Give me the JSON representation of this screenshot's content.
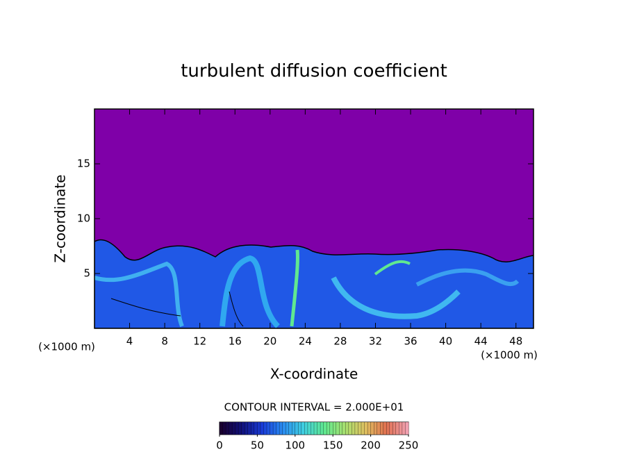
{
  "chart_data": {
    "type": "contour",
    "title": "turbulent diffusion coefficient",
    "xlabel": "X-coordinate",
    "ylabel": "Z-coordinate",
    "x_unit_left": "(×1000 m)",
    "x_unit_right": "(×1000 m)",
    "xlim": [
      0,
      50
    ],
    "xticks": [
      4,
      8,
      12,
      16,
      20,
      24,
      28,
      32,
      36,
      40,
      44,
      48
    ],
    "ylim": [
      0,
      20
    ],
    "yticks": [
      5,
      10,
      15
    ],
    "contour_interval": "CONTOUR INTERVAL = 2.000E+01",
    "clim": [
      0,
      250
    ],
    "cticks": [
      0,
      50,
      100,
      150,
      200,
      250
    ],
    "colormap": [
      "#1a0030",
      "#10107a",
      "#1a3cd8",
      "#2a8cf0",
      "#40d0e0",
      "#60e890",
      "#a8e070",
      "#e0c060",
      "#e07050",
      "#f0a0b0"
    ]
  }
}
